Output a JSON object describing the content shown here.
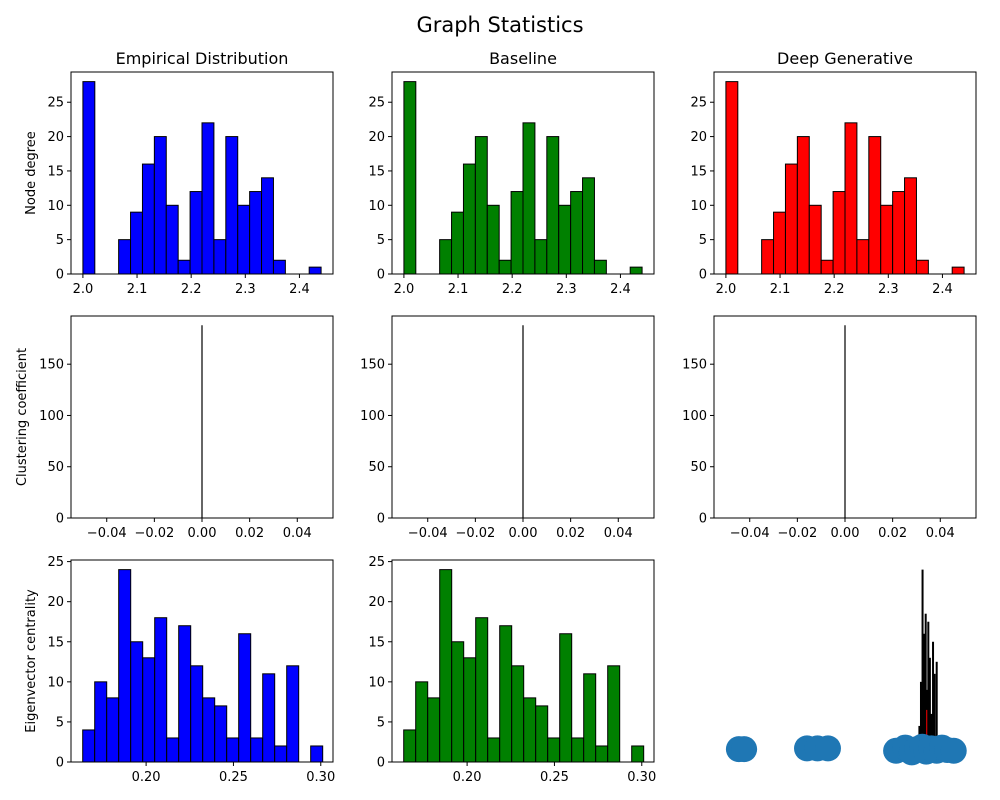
{
  "figure": {
    "title": "Graph Statistics"
  },
  "colors": {
    "empirical": "#0000ff",
    "baseline": "#008000",
    "generative": "#ff0000",
    "edge": "#000000",
    "scatter": "#1f77b4"
  },
  "chart_data": [
    {
      "id": "degree-empirical",
      "type": "bar",
      "row": 0,
      "col": 0,
      "title": "Empirical Distribution",
      "ylabel": "Node degree",
      "color": "empirical",
      "xlim": [
        1.978,
        2.462
      ],
      "ylim": [
        0,
        29.4
      ],
      "xticks": [
        2.0,
        2.1,
        2.2,
        2.3,
        2.4
      ],
      "xtick_labels": [
        "2.0",
        "2.1",
        "2.2",
        "2.3",
        "2.4"
      ],
      "yticks": [
        0,
        5,
        10,
        15,
        20,
        25
      ],
      "ytick_labels": [
        "0",
        "5",
        "10",
        "15",
        "20",
        "25"
      ],
      "bin_start": 2.0,
      "bin_width": 0.022,
      "values": [
        28,
        0,
        0,
        5,
        9,
        16,
        20,
        10,
        2,
        12,
        22,
        5,
        20,
        10,
        12,
        14,
        2,
        0,
        0,
        1
      ]
    },
    {
      "id": "degree-baseline",
      "type": "bar",
      "row": 0,
      "col": 1,
      "title": "Baseline",
      "ylabel": "",
      "color": "baseline",
      "xlim": [
        1.978,
        2.462
      ],
      "ylim": [
        0,
        29.4
      ],
      "xticks": [
        2.0,
        2.1,
        2.2,
        2.3,
        2.4
      ],
      "xtick_labels": [
        "2.0",
        "2.1",
        "2.2",
        "2.3",
        "2.4"
      ],
      "yticks": [
        0,
        5,
        10,
        15,
        20,
        25
      ],
      "ytick_labels": [
        "0",
        "5",
        "10",
        "15",
        "20",
        "25"
      ],
      "bin_start": 2.0,
      "bin_width": 0.022,
      "values": [
        28,
        0,
        0,
        5,
        9,
        16,
        20,
        10,
        2,
        12,
        22,
        5,
        20,
        10,
        12,
        14,
        2,
        0,
        0,
        1
      ]
    },
    {
      "id": "degree-generative",
      "type": "bar",
      "row": 0,
      "col": 2,
      "title": "Deep Generative",
      "ylabel": "",
      "color": "generative",
      "xlim": [
        1.978,
        2.462
      ],
      "ylim": [
        0,
        29.4
      ],
      "xticks": [
        2.0,
        2.1,
        2.2,
        2.3,
        2.4
      ],
      "xtick_labels": [
        "2.0",
        "2.1",
        "2.2",
        "2.3",
        "2.4"
      ],
      "yticks": [
        0,
        5,
        10,
        15,
        20,
        25
      ],
      "ytick_labels": [
        "0",
        "5",
        "10",
        "15",
        "20",
        "25"
      ],
      "bin_start": 2.0,
      "bin_width": 0.022,
      "values": [
        28,
        0,
        0,
        5,
        9,
        16,
        20,
        10,
        2,
        12,
        22,
        5,
        20,
        10,
        12,
        14,
        2,
        0,
        0,
        1
      ]
    },
    {
      "id": "clustering-empirical",
      "type": "bar",
      "row": 1,
      "col": 0,
      "title": "",
      "ylabel": "Clustering coefficient",
      "color": "empirical",
      "xlim": [
        -0.055,
        0.055
      ],
      "ylim": [
        0,
        197
      ],
      "xticks": [
        -0.04,
        -0.02,
        0.0,
        0.02,
        0.04
      ],
      "xtick_labels": [
        "−0.04",
        "−0.02",
        "0.00",
        "0.02",
        "0.04"
      ],
      "yticks": [
        0,
        50,
        100,
        150
      ],
      "ytick_labels": [
        "0",
        "50",
        "100",
        "150"
      ],
      "spike_x": 0.0,
      "spike_value": 188
    },
    {
      "id": "clustering-baseline",
      "type": "bar",
      "row": 1,
      "col": 1,
      "title": "",
      "ylabel": "",
      "color": "baseline",
      "xlim": [
        -0.055,
        0.055
      ],
      "ylim": [
        0,
        197
      ],
      "xticks": [
        -0.04,
        -0.02,
        0.0,
        0.02,
        0.04
      ],
      "xtick_labels": [
        "−0.04",
        "−0.02",
        "0.00",
        "0.02",
        "0.04"
      ],
      "yticks": [
        0,
        50,
        100,
        150
      ],
      "ytick_labels": [
        "0",
        "50",
        "100",
        "150"
      ],
      "spike_x": 0.0,
      "spike_value": 188
    },
    {
      "id": "clustering-generative",
      "type": "bar",
      "row": 1,
      "col": 2,
      "title": "",
      "ylabel": "",
      "color": "generative",
      "xlim": [
        -0.055,
        0.055
      ],
      "ylim": [
        0,
        197
      ],
      "xticks": [
        -0.04,
        -0.02,
        0.0,
        0.02,
        0.04
      ],
      "xtick_labels": [
        "−0.04",
        "−0.02",
        "0.00",
        "0.02",
        "0.04"
      ],
      "yticks": [
        0,
        50,
        100,
        150
      ],
      "ytick_labels": [
        "0",
        "50",
        "100",
        "150"
      ],
      "spike_x": 0.0,
      "spike_value": 188
    },
    {
      "id": "eigen-empirical",
      "type": "bar",
      "row": 2,
      "col": 0,
      "title": "",
      "ylabel": "Eigenvector centrality",
      "color": "empirical",
      "xlim": [
        0.157,
        0.307
      ],
      "ylim": [
        0,
        25.2
      ],
      "xticks": [
        0.2,
        0.25,
        0.3
      ],
      "xtick_labels": [
        "0.20",
        "0.25",
        "0.30"
      ],
      "yticks": [
        0,
        5,
        10,
        15,
        20,
        25
      ],
      "ytick_labels": [
        "0",
        "5",
        "10",
        "15",
        "20",
        "25"
      ],
      "bin_start": 0.1637,
      "bin_width": 0.00687,
      "values": [
        4,
        10,
        8,
        24,
        15,
        13,
        18,
        3,
        17,
        12,
        8,
        7,
        3,
        16,
        3,
        11,
        2,
        12,
        0,
        2
      ]
    },
    {
      "id": "eigen-baseline",
      "type": "bar",
      "row": 2,
      "col": 1,
      "title": "",
      "ylabel": "",
      "color": "baseline",
      "xlim": [
        0.157,
        0.307
      ],
      "ylim": [
        0,
        25.2
      ],
      "xticks": [
        0.2,
        0.25,
        0.3
      ],
      "xtick_labels": [
        "0.20",
        "0.25",
        "0.30"
      ],
      "yticks": [
        0,
        5,
        10,
        15,
        20,
        25
      ],
      "ytick_labels": [
        "0",
        "5",
        "10",
        "15",
        "20",
        "25"
      ],
      "bin_start": 0.1637,
      "bin_width": 0.00687,
      "values": [
        4,
        10,
        8,
        24,
        15,
        13,
        18,
        3,
        17,
        12,
        8,
        7,
        3,
        16,
        3,
        11,
        2,
        12,
        0,
        2
      ]
    },
    {
      "id": "eigen-generative",
      "type": "scatter",
      "row": 2,
      "col": 2,
      "title": "",
      "ylabel": "",
      "color": "generative",
      "xlim": [
        0,
        10
      ],
      "ylim": [
        0,
        25.2
      ],
      "points": [
        [
          0.95,
          1.6
        ],
        [
          1.15,
          1.6
        ],
        [
          3.55,
          1.7
        ],
        [
          3.95,
          1.7
        ],
        [
          4.35,
          1.7
        ],
        [
          6.95,
          1.4
        ],
        [
          7.3,
          1.8
        ],
        [
          7.55,
          1.2
        ],
        [
          7.75,
          1.6
        ],
        [
          7.95,
          1.9
        ],
        [
          8.1,
          1.3
        ],
        [
          8.3,
          1.7
        ],
        [
          8.5,
          1.4
        ],
        [
          8.7,
          1.8
        ],
        [
          8.9,
          1.5
        ],
        [
          9.15,
          1.4
        ]
      ],
      "spikes": [
        [
          7.84,
          4.5
        ],
        [
          7.9,
          10.0
        ],
        [
          7.96,
          24.0
        ],
        [
          8.02,
          16.0
        ],
        [
          8.08,
          18.5
        ],
        [
          8.12,
          9.0
        ],
        [
          8.18,
          17.5
        ],
        [
          8.24,
          13.0
        ],
        [
          8.3,
          6.0
        ],
        [
          8.36,
          15.0
        ],
        [
          8.42,
          11.0
        ],
        [
          8.5,
          12.5
        ],
        [
          8.56,
          3.0
        ]
      ]
    }
  ]
}
